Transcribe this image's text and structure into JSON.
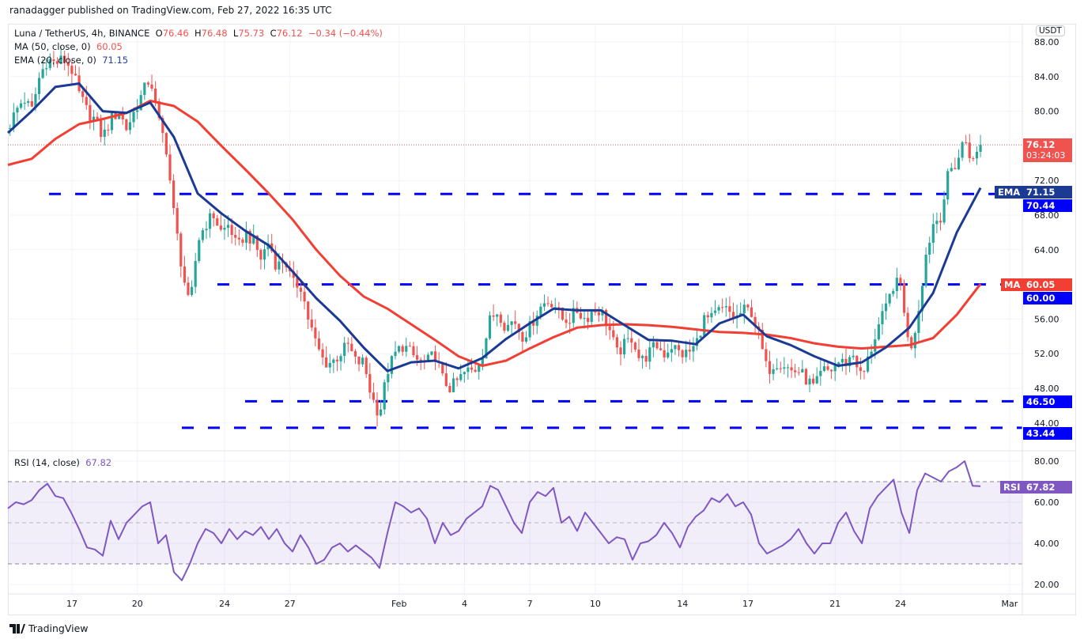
{
  "header": {
    "publisher": "ranadagger published on TradingView.com, Feb 27, 2022 16:35 UTC",
    "symbol": "Luna / TetherUS, 4h, BINANCE",
    "o_label": "O",
    "o": "76.46",
    "h_label": "H",
    "h": "76.48",
    "l_label": "L",
    "l": "75.73",
    "c_label": "C",
    "c": "76.12",
    "change": "−0.34 (−0.44%)",
    "ma_label": "MA (50, close, 0)",
    "ma_value": "60.05",
    "ema_label": "EMA (20, close, 0)",
    "ema_value": "71.15",
    "rsi_label": "RSI (14, close)",
    "rsi_value": "67.82",
    "currency": "USDT"
  },
  "price_tags": {
    "last": "76.12",
    "countdown": "03:24:03",
    "ema_name": "EMA",
    "ema": "71.15",
    "level1": "70.44",
    "ma_name": "MA",
    "ma": "60.05",
    "level2": "60.00",
    "level3": "46.50",
    "level4": "43.44",
    "rsi_name": "RSI",
    "rsi": "67.82"
  },
  "footer": {
    "brand": "TradingView"
  },
  "colors": {
    "up": "#26a69a",
    "down": "#ef5350",
    "ema": "#1b3a94",
    "ma": "#f23f34",
    "level": "#0000ff",
    "rsi": "#7e57c2"
  },
  "chart_data": {
    "type": "candlestick",
    "title": "Luna / TetherUS, 4h, BINANCE",
    "x_unit": "days since Jan 17, 2022",
    "ylim": [
      42,
      89
    ],
    "y_ticks": [
      "88.00",
      "84.00",
      "80.00",
      "72.00",
      "68.00",
      "64.00",
      "56.00",
      "52.00",
      "48.00",
      "44.00"
    ],
    "x_ticks": [
      {
        "label": "17",
        "t": 0
      },
      {
        "label": "20",
        "t": 3
      },
      {
        "label": "24",
        "t": 7
      },
      {
        "label": "27",
        "t": 10
      },
      {
        "label": "Feb",
        "t": 15
      },
      {
        "label": "4",
        "t": 18
      },
      {
        "label": "7",
        "t": 21
      },
      {
        "label": "10",
        "t": 24
      },
      {
        "label": "14",
        "t": 28
      },
      {
        "label": "17",
        "t": 31
      },
      {
        "label": "21",
        "t": 35
      },
      {
        "label": "24",
        "t": 38
      },
      {
        "label": "Mar",
        "t": 43
      }
    ],
    "close_path": {
      "t_start": -2.937,
      "t_step_days": 0.3626,
      "values": [
        78,
        80,
        81.5,
        80,
        84,
        86,
        85.5,
        86,
        85,
        82,
        80,
        79,
        77,
        79,
        80,
        78,
        80,
        82,
        84,
        79,
        76,
        68,
        62,
        57,
        65,
        67,
        68,
        66,
        67,
        64,
        66,
        65,
        63,
        65,
        62,
        63,
        60,
        60,
        56,
        53,
        51,
        51,
        52,
        53,
        51,
        51,
        47,
        45,
        50,
        52,
        53,
        52,
        51,
        51,
        52,
        49,
        48,
        49,
        50,
        50,
        52,
        56,
        57,
        55,
        56,
        54,
        55,
        57,
        58,
        58,
        56,
        56,
        57,
        56,
        57,
        57,
        55,
        52,
        53,
        54,
        51,
        52,
        53,
        52,
        53,
        52,
        52,
        53,
        56,
        56,
        57,
        57,
        56,
        57,
        57,
        54,
        50,
        51,
        51,
        50,
        50,
        49,
        48,
        50,
        50,
        51,
        51,
        52,
        49,
        52,
        55,
        57,
        60,
        60,
        52,
        56,
        63,
        67,
        68,
        73,
        74,
        77,
        74,
        76.12
      ]
    },
    "ema20": {
      "t_start": -2.937,
      "t_step_days": 1.0878,
      "values": [
        77.5,
        80,
        82.8,
        83.2,
        80,
        79.8,
        81,
        77,
        70.5,
        68.2,
        66.2,
        64.5,
        61.5,
        58.4,
        55.8,
        52.7,
        50,
        51,
        51.2,
        50.3,
        51.5,
        53.7,
        55.5,
        57.2,
        57,
        57,
        55.3,
        53.6,
        53.5,
        53.1,
        55.5,
        56.5,
        54,
        53,
        51.7,
        50.6,
        51,
        52.7,
        55,
        59,
        66,
        71.15
      ]
    },
    "ma50": {
      "t_start": -2.937,
      "t_step_days": 1.0878,
      "values": [
        73.8,
        74.5,
        76.8,
        78.5,
        79.1,
        79.8,
        81.2,
        80.6,
        78.8,
        76,
        73.3,
        70.5,
        67.5,
        64,
        61,
        58.6,
        57.2,
        55.4,
        53.6,
        51.7,
        50.6,
        51.2,
        52.6,
        53.9,
        55,
        55.3,
        55.4,
        55.3,
        55.1,
        54.8,
        54.5,
        54.4,
        54.2,
        53.8,
        53.2,
        52.8,
        52.6,
        52.8,
        53,
        53.8,
        56.5,
        60.05
      ]
    },
    "levels": [
      {
        "price": 70.44,
        "t_from": -1.05
      },
      {
        "price": 60.0,
        "t_from": 6.67
      },
      {
        "price": 46.5,
        "t_from": 7.94
      },
      {
        "price": 43.44,
        "t_from": 5.04
      }
    ],
    "last_price": 76.12,
    "rsi": {
      "ylim": [
        15,
        85
      ],
      "overbought": 70,
      "oversold": 30,
      "mid": 50,
      "y_ticks": [
        "80.00",
        "60.00",
        "40.00",
        "20.00"
      ],
      "t_start": -2.937,
      "t_step_days": 0.3626,
      "values": [
        57,
        60,
        59,
        61,
        66,
        69,
        63,
        62,
        55,
        47,
        38,
        37,
        34,
        51,
        42,
        50,
        54,
        58,
        60,
        40,
        44,
        26,
        22,
        30,
        40,
        47,
        45,
        40,
        47,
        42,
        46,
        44,
        48,
        42,
        47,
        40,
        36,
        44,
        38,
        30,
        32,
        38,
        40,
        36,
        39,
        36,
        33,
        28,
        45,
        60,
        58,
        55,
        57,
        52,
        40,
        50,
        44,
        46,
        52,
        55,
        58,
        68,
        66,
        58,
        50,
        45,
        60,
        65,
        63,
        67,
        50,
        53,
        46,
        55,
        50,
        45,
        40,
        43,
        42,
        32,
        40,
        41,
        44,
        50,
        45,
        38,
        48,
        53,
        56,
        62,
        60,
        64,
        58,
        60,
        54,
        40,
        35,
        37,
        39,
        42,
        47,
        40,
        35,
        40,
        40,
        50,
        55,
        46,
        40,
        57,
        63,
        67,
        71,
        55,
        45,
        66,
        74,
        72,
        70,
        75,
        77,
        80,
        68,
        67.82
      ]
    }
  }
}
